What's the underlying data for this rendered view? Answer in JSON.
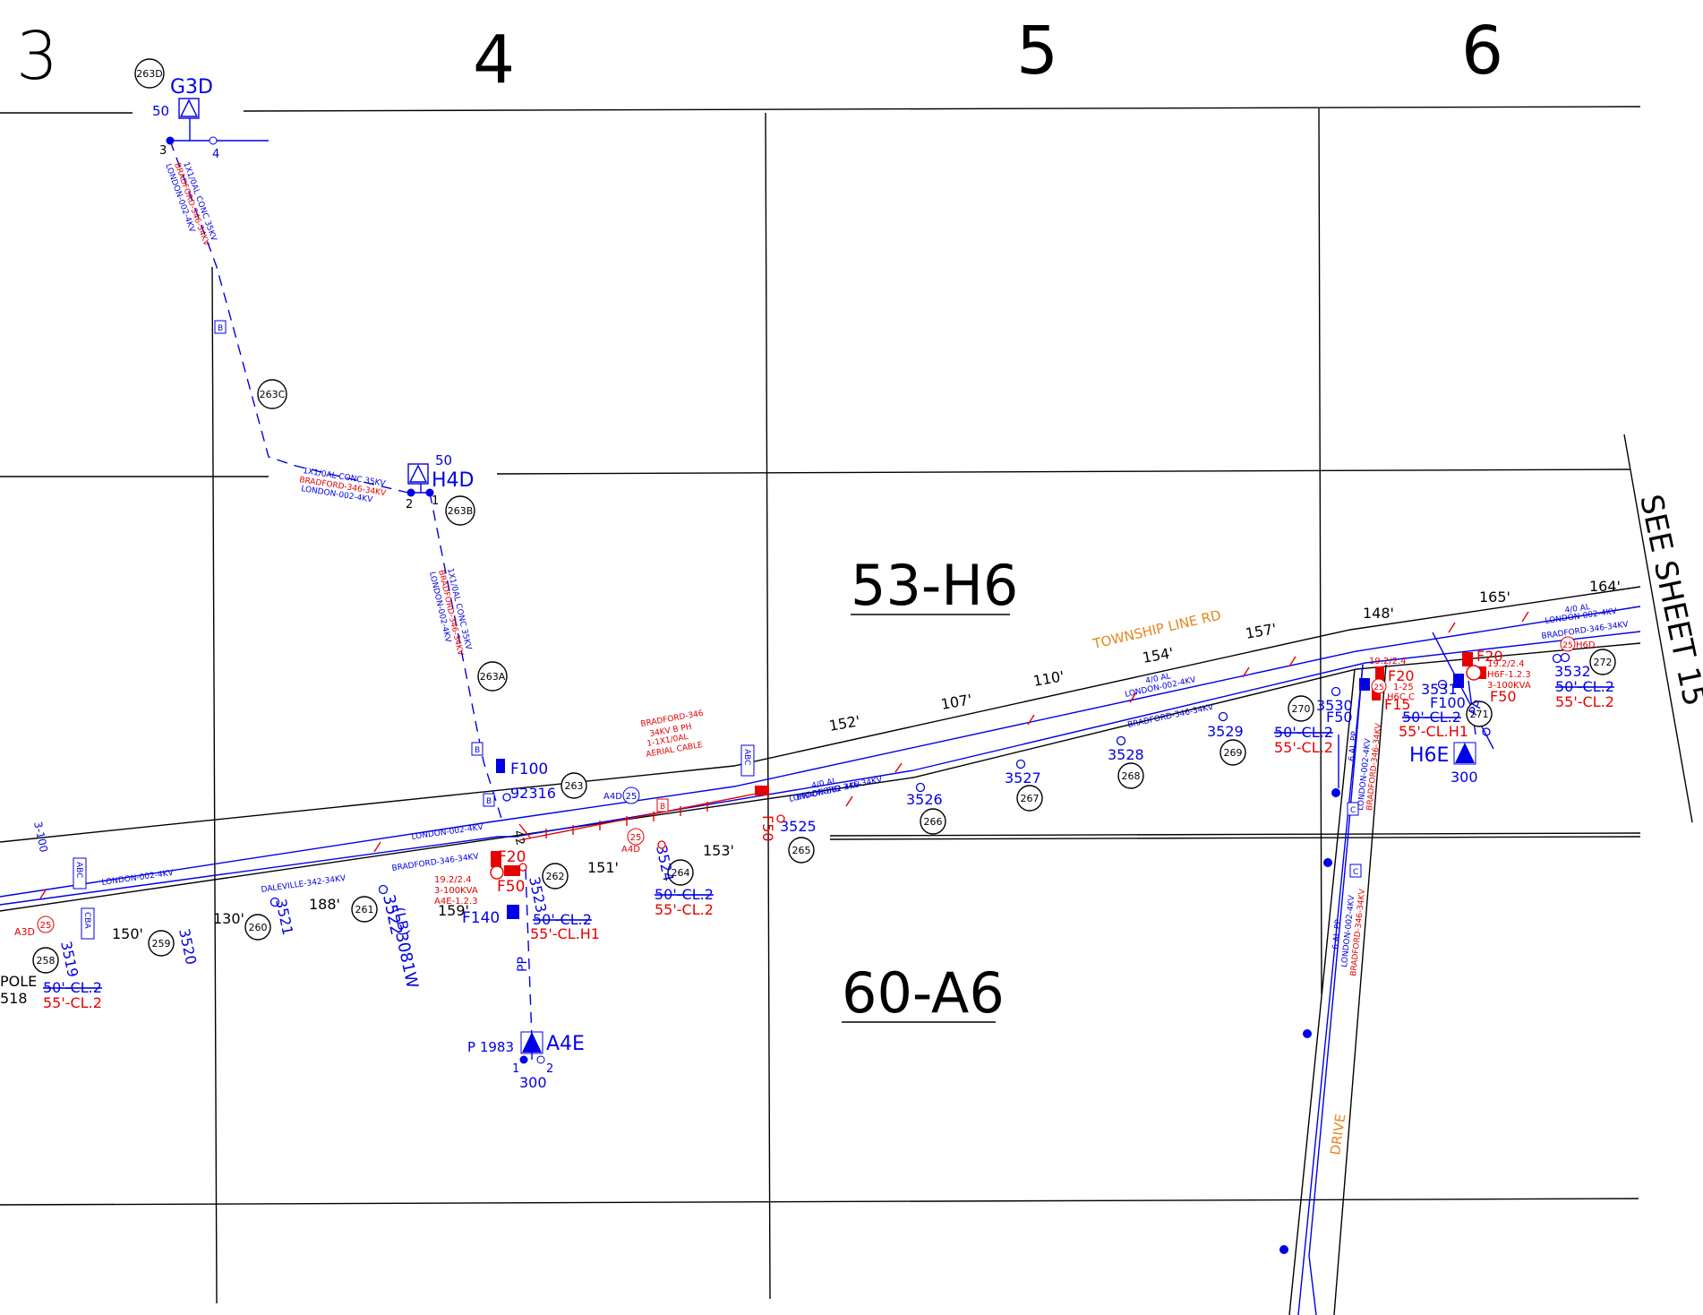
{
  "colors": {
    "black": "#000000",
    "blue": "#0000e6",
    "red": "#e60000",
    "orange": "#e6841e"
  },
  "grid_numbers": [
    "3",
    "4",
    "5",
    "6"
  ],
  "map_labels": {
    "north_area": "53-H6",
    "south_area": "60-A6",
    "see_sheet": "SEE SHEET 15",
    "road": "TOWNSHIP LINE RD",
    "drive": "DRIVE"
  },
  "transformers": [
    {
      "id": "G3D",
      "kva": "50",
      "ph_a": "3",
      "ph_b": "4"
    },
    {
      "id": "H4D",
      "kva": "50",
      "ph_a": "2",
      "ph_b": "1"
    },
    {
      "id": "A4E",
      "kva": "300",
      "prefix": "P 1983",
      "ph_a": "1",
      "ph_b": "2"
    },
    {
      "id": "H6E",
      "kva": "300"
    }
  ],
  "circles": [
    "263D",
    "263C",
    "263B",
    "263A",
    "263",
    "262",
    "264",
    "265",
    "266",
    "267",
    "268",
    "269",
    "270",
    "271",
    "272",
    "261",
    "260",
    "259",
    "258"
  ],
  "spans": [
    "152'",
    "107'",
    "110'",
    "154'",
    "157'",
    "148'",
    "165'",
    "164'",
    "153'",
    "151'",
    "150'",
    "130'",
    "188'",
    "159'"
  ],
  "poles": [
    "3519",
    "3520",
    "3521",
    "3522",
    "3081W",
    "(LB)",
    "3523",
    "3524",
    "3525",
    "3526",
    "3527",
    "3528",
    "3529",
    "3530",
    "3531",
    "3532",
    "92316"
  ],
  "cable_labels": {
    "conc": "1X1/0AL CONC 35KV",
    "bradford_346": "BRADFORD-346-34KV",
    "bradford_342": "BRADFORD-342-34KV",
    "london": "LONDON-002-4KV",
    "daleville": "DALEVILLE-342-34KV",
    "four_al": "4/0 AL",
    "aerial_1": "BRADFORD-346",
    "aerial_2": "34KV B PH",
    "aerial_3": "1-1X1/0AL",
    "aerial_4": "AERIAL CABLE",
    "six_al_pp": "6 AL PP"
  },
  "fuses": [
    "F20",
    "F50",
    "F100",
    "F140",
    "F15",
    "F50",
    "F20",
    "F100"
  ],
  "equipment_notes": {
    "a4e_1": "19.2/2.4",
    "a4e_2": "3-100KVA",
    "a4e_3": "A4E-1.2.3",
    "h6f_1": "19.2/2.4",
    "h6f_2": "H6F-1.2.3",
    "h6f_3": "3-100KVA",
    "h6c": "H6C C",
    "h6c_b": "1-25",
    "h6_top": "19.2/2.4",
    "h6d": "H6D",
    "a3d": "A3D",
    "a4d": "A4D",
    "pole_name": "POLE",
    "pole_num": "518"
  },
  "pole_specs": {
    "old": "50'-CL.2",
    "new": "55'-CL.2",
    "new_h1": "55'-CL.H1",
    "pp": "PP",
    "b": "B",
    "c": "C",
    "abc": "ABC",
    "cba": "CBA",
    "num_25": "25",
    "num_42": "42",
    "three_100": "3-100"
  }
}
